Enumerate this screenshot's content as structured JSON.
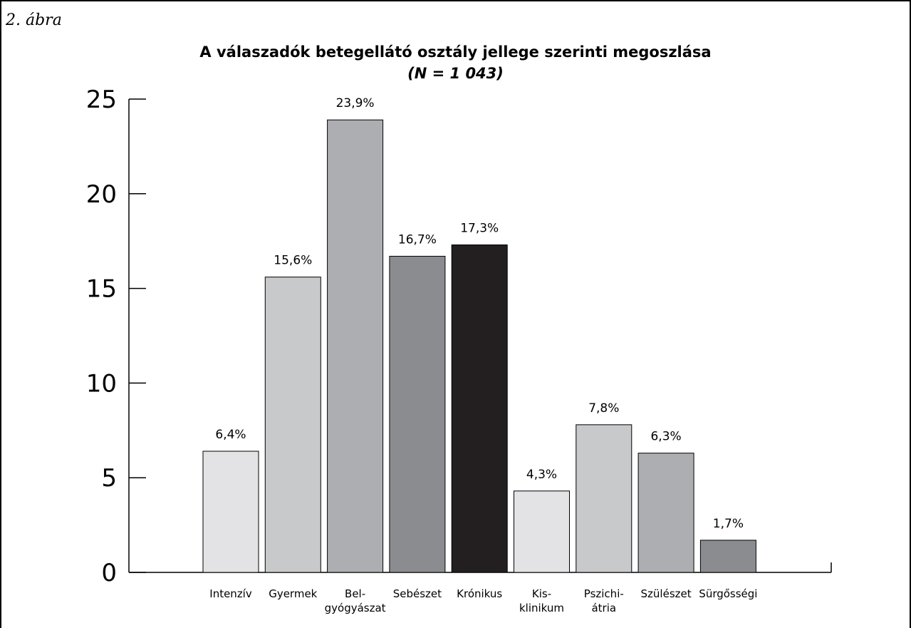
{
  "figure_label": "2. ábra",
  "chart_data": {
    "type": "bar",
    "title": "A válaszadók betegellátó osztály jellege szerinti megoszlása",
    "subtitle": "(N = 1 043)",
    "xlabel": "",
    "ylabel": "",
    "ylim": [
      0,
      25
    ],
    "yticks": [
      "0",
      "5",
      "10",
      "15",
      "20",
      "25"
    ],
    "ytick_values": [
      0,
      5,
      10,
      15,
      20,
      25
    ],
    "grid": false,
    "categories": [
      [
        "Intenzív"
      ],
      [
        "Gyermek"
      ],
      [
        "Bel-",
        "gyógyászat"
      ],
      [
        "Sebészet"
      ],
      [
        "Krónikus"
      ],
      [
        "Kis-",
        "klinikum"
      ],
      [
        "Pszichi-",
        "átria"
      ],
      [
        "Szülészet"
      ],
      [
        "Sürgősségi"
      ]
    ],
    "values": [
      6.4,
      15.6,
      23.9,
      16.7,
      17.3,
      4.3,
      7.8,
      6.3,
      1.7
    ],
    "value_labels": [
      "6,4%",
      "15,6%",
      "23,9%",
      "16,7%",
      "17,3%",
      "4,3%",
      "7,8%",
      "6,3%",
      "1,7%"
    ],
    "colors": [
      "#e3e3e5",
      "#c8c9cb",
      "#adaeb1",
      "#8b8c90",
      "#231f20",
      "#e3e3e5",
      "#c8c9cb",
      "#adaeb1",
      "#8b8c90"
    ]
  }
}
